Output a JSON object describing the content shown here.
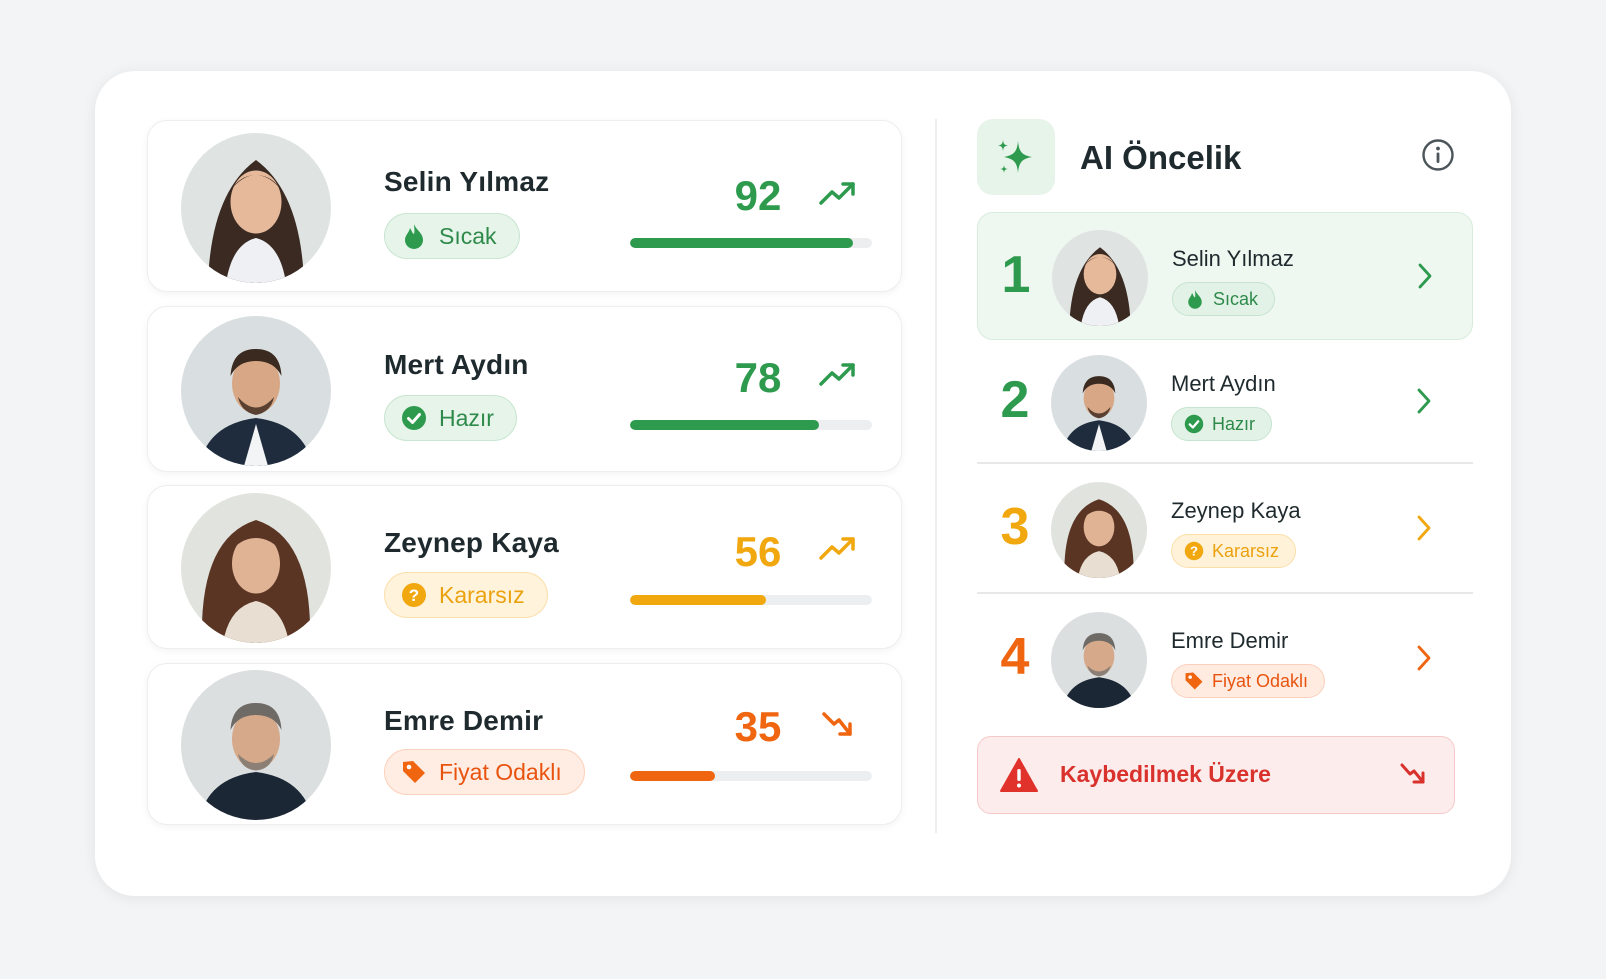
{
  "leads": [
    {
      "name": "Selin Yılmaz",
      "status": "Sıcak",
      "status_icon": "flame-icon",
      "score": "92",
      "score_value": 92,
      "trend": "up",
      "color": "#2e9a4e"
    },
    {
      "name": "Mert Aydın",
      "status": "Hazır",
      "status_icon": "check-circle-icon",
      "score": "78",
      "score_value": 78,
      "trend": "up",
      "color": "#2e9a4e"
    },
    {
      "name": "Zeynep Kaya",
      "status": "Kararsız",
      "status_icon": "question-circle-icon",
      "score": "56",
      "score_value": 56,
      "trend": "up",
      "color": "#f1a70e"
    },
    {
      "name": "Emre Demir",
      "status": "Fiyat Odaklı",
      "status_icon": "tag-icon",
      "score": "35",
      "score_value": 35,
      "trend": "down",
      "color": "#f0650f"
    }
  ],
  "priority": {
    "title": "AI Öncelik",
    "items": [
      {
        "rank": "1",
        "name": "Selin Yılmaz",
        "status": "Sıcak",
        "color": "#2e9a4e"
      },
      {
        "rank": "2",
        "name": "Mert Aydın",
        "status": "Hazır",
        "color": "#2e9a4e"
      },
      {
        "rank": "3",
        "name": "Zeynep Kaya",
        "status": "Kararsız",
        "color": "#f1a70e"
      },
      {
        "rank": "4",
        "name": "Emre Demir",
        "status": "Fiyat Odaklı",
        "color": "#f0650f"
      }
    ],
    "alert": "Kaybedilmek Üzere"
  },
  "colors": {
    "green": "#2e9a4e",
    "yellow": "#f1a70e",
    "orange": "#f0650f",
    "red": "#d9312b"
  }
}
